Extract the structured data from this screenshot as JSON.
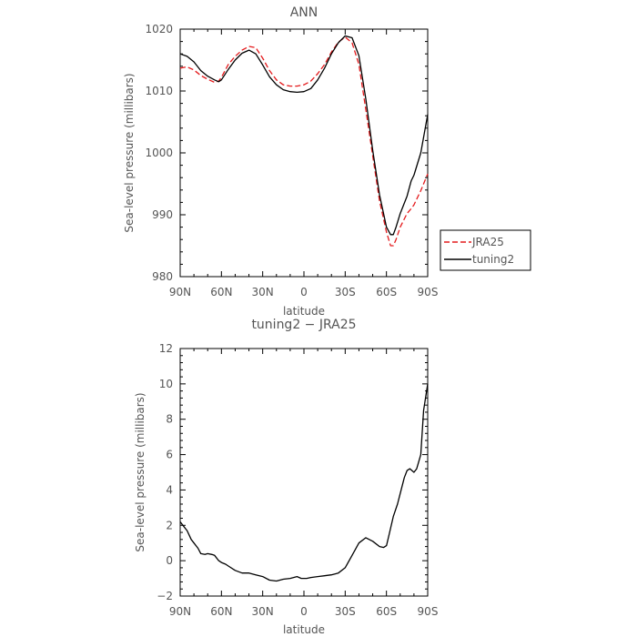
{
  "chart_data": [
    {
      "type": "line",
      "title": "ANN",
      "xlabel": "latitude",
      "ylabel": "Sea-level pressure (millibars)",
      "xlim": [
        90,
        -90
      ],
      "ylim": [
        980,
        1020
      ],
      "x_tick_values": [
        90,
        60,
        30,
        0,
        -30,
        -60,
        -90
      ],
      "x_tick_labels": [
        "90N",
        "60N",
        "30N",
        "0",
        "30S",
        "60S",
        "90S"
      ],
      "y_tick_values": [
        980,
        990,
        1000,
        1010,
        1020
      ],
      "y_tick_labels": [
        "980",
        "990",
        "1000",
        "1010",
        "1020"
      ],
      "legend_position": "right",
      "series": [
        {
          "name": "JRA25",
          "color": "#e41a1c",
          "dash": "dashed",
          "x": [
            90,
            85,
            80,
            75,
            70,
            65,
            62,
            60,
            55,
            50,
            45,
            40,
            35,
            30,
            25,
            20,
            15,
            10,
            5,
            0,
            -5,
            -10,
            -15,
            -20,
            -25,
            -30,
            -35,
            -40,
            -45,
            -50,
            -55,
            -60,
            -63,
            -65,
            -67,
            -70,
            -75,
            -78,
            -80,
            -85,
            -90
          ],
          "values": [
            1013.7,
            1013.9,
            1013.4,
            1012.5,
            1011.9,
            1011.4,
            1011.6,
            1012.2,
            1014.3,
            1015.6,
            1016.6,
            1017.2,
            1017.0,
            1015.3,
            1013.3,
            1011.8,
            1011.0,
            1010.8,
            1010.8,
            1011.0,
            1011.6,
            1012.8,
            1014.3,
            1016.3,
            1017.9,
            1018.7,
            1017.8,
            1014.3,
            1007.0,
            999.5,
            992.2,
            987.2,
            985.0,
            985.0,
            986.0,
            988.0,
            990.2,
            991.0,
            991.6,
            993.9,
            996.6
          ]
        },
        {
          "name": "tuning2",
          "color": "#000000",
          "dash": "solid",
          "x": [
            90,
            85,
            80,
            75,
            70,
            65,
            62,
            60,
            55,
            50,
            45,
            40,
            35,
            30,
            25,
            20,
            15,
            10,
            5,
            0,
            -5,
            -10,
            -15,
            -20,
            -25,
            -30,
            -35,
            -40,
            -45,
            -50,
            -55,
            -60,
            -63,
            -65,
            -67,
            -70,
            -75,
            -78,
            -80,
            -85,
            -90
          ],
          "values": [
            1016.0,
            1015.6,
            1014.7,
            1013.3,
            1012.4,
            1011.8,
            1011.5,
            1011.8,
            1013.5,
            1015.0,
            1016.1,
            1016.6,
            1016.0,
            1014.2,
            1012.3,
            1011.0,
            1010.2,
            1009.9,
            1009.8,
            1009.9,
            1010.4,
            1011.8,
            1013.7,
            1016.0,
            1017.8,
            1018.9,
            1018.6,
            1015.7,
            1008.7,
            1000.4,
            993.2,
            988.0,
            986.8,
            986.8,
            988.0,
            990.2,
            993.0,
            995.5,
            996.4,
            1000.0,
            1006.2
          ]
        }
      ]
    },
    {
      "type": "line",
      "title": "tuning2 − JRA25",
      "xlabel": "latitude",
      "ylabel": "Sea-level pressure (millibars)",
      "xlim": [
        90,
        -90
      ],
      "ylim": [
        -2,
        12
      ],
      "x_tick_values": [
        90,
        60,
        30,
        0,
        -30,
        -60,
        -90
      ],
      "x_tick_labels": [
        "90N",
        "60N",
        "30N",
        "0",
        "30S",
        "60S",
        "90S"
      ],
      "y_tick_values": [
        -2,
        0,
        2,
        4,
        6,
        8,
        10,
        12
      ],
      "y_tick_labels": [
        "−2",
        "0",
        "2",
        "4",
        "6",
        "8",
        "10",
        "12"
      ],
      "series": [
        {
          "color": "#000000",
          "dash": "solid",
          "x": [
            90,
            88,
            85,
            82,
            80,
            77,
            75,
            72,
            70,
            67,
            65,
            62,
            60,
            57,
            55,
            50,
            45,
            40,
            35,
            30,
            25,
            20,
            15,
            10,
            5,
            2,
            0,
            -2,
            -5,
            -10,
            -15,
            -20,
            -25,
            -30,
            -35,
            -40,
            -45,
            -50,
            -55,
            -58,
            -60,
            -62,
            -65,
            -68,
            -70,
            -73,
            -75,
            -77,
            -80,
            -82,
            -85,
            -87,
            -88,
            -89,
            -90
          ],
          "values": [
            2.2,
            2.0,
            1.7,
            1.2,
            1.0,
            0.7,
            0.4,
            0.35,
            0.4,
            0.35,
            0.3,
            0.0,
            -0.1,
            -0.2,
            -0.3,
            -0.55,
            -0.7,
            -0.7,
            -0.8,
            -0.9,
            -1.1,
            -1.15,
            -1.05,
            -1.0,
            -0.9,
            -1.0,
            -1.0,
            -1.0,
            -0.95,
            -0.9,
            -0.85,
            -0.8,
            -0.7,
            -0.4,
            0.3,
            1.0,
            1.3,
            1.1,
            0.8,
            0.75,
            0.85,
            1.5,
            2.5,
            3.2,
            3.8,
            4.7,
            5.1,
            5.2,
            5.0,
            5.2,
            6.0,
            8.5,
            9.0,
            9.5,
            10.0
          ]
        }
      ]
    }
  ]
}
